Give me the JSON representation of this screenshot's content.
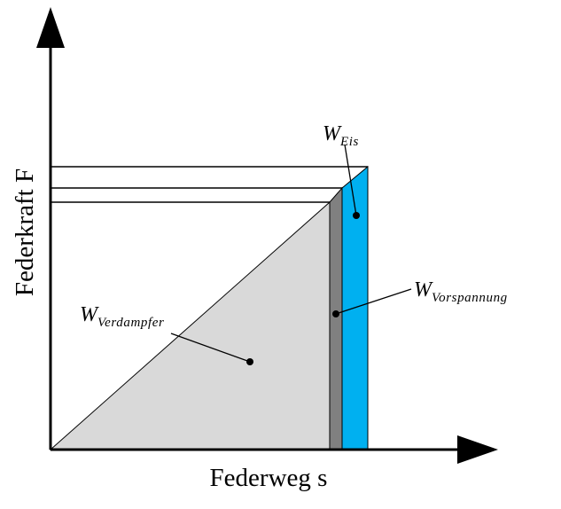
{
  "axes": {
    "x_title": "Federweg s",
    "y_title": "Federkraft F"
  },
  "labels": {
    "w_eis": {
      "main": "W",
      "sub": "Eis"
    },
    "w_vorspannung": {
      "main": "W",
      "sub": "Vorspannung"
    },
    "w_verdampfer": {
      "main": "W",
      "sub": "Verdampfer"
    }
  },
  "colors": {
    "axis": "#000000",
    "verdampfer_fill": "#d9d9d9",
    "vorspannung_fill": "#808080",
    "eis_fill": "#00b0f0",
    "outline": "#000000"
  }
}
